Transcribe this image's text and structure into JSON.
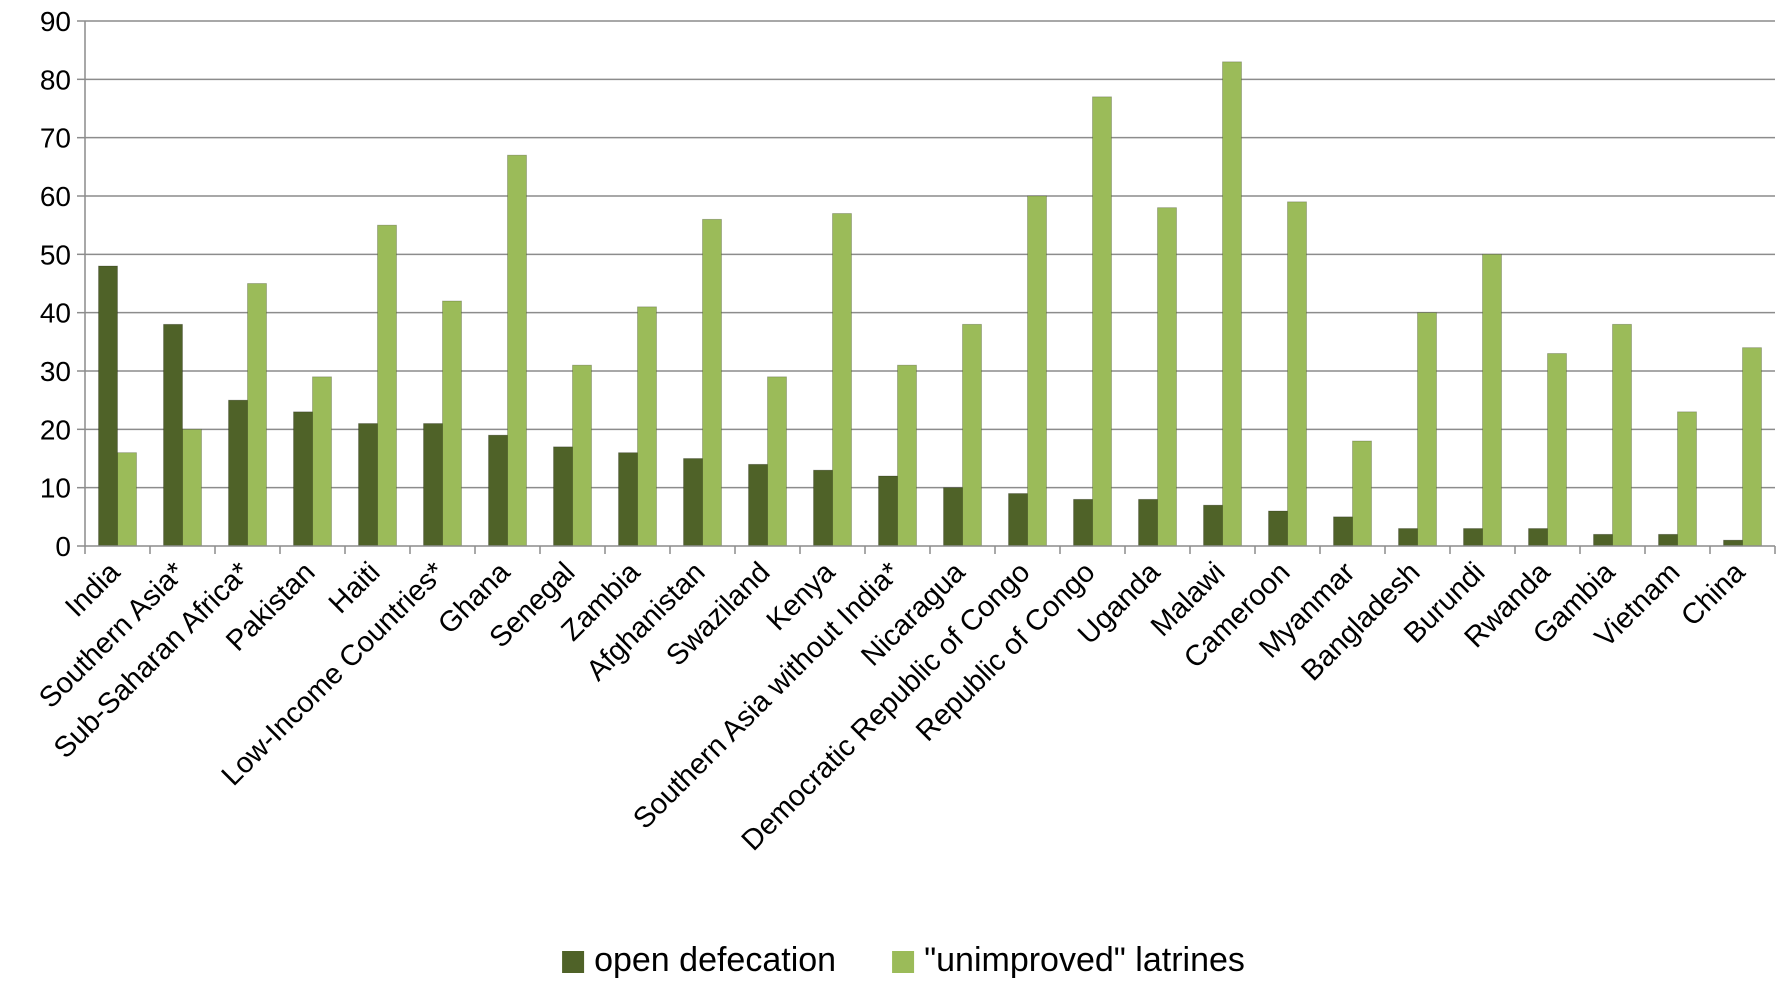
{
  "chart_data": {
    "type": "bar",
    "title": "",
    "xlabel": "",
    "ylabel": "",
    "ylim": [
      0,
      90
    ],
    "y_ticks": [
      0,
      10,
      20,
      30,
      40,
      50,
      60,
      70,
      80,
      90
    ],
    "grid": true,
    "legend_position": "bottom",
    "categories": [
      "India",
      "Southern Asia*",
      "Sub-Saharan Africa*",
      "Pakistan",
      "Haiti",
      "Low-Income Countries*",
      "Ghana",
      "Senegal",
      "Zambia",
      "Afghanistan",
      "Swaziland",
      "Kenya",
      "Southern Asia without India*",
      "Nicaragua",
      "Democratic Republic of Congo",
      "Republic of Congo",
      "Uganda",
      "Malawi",
      "Cameroon",
      "Myanmar",
      "Bangladesh",
      "Burundi",
      "Rwanda",
      "Gambia",
      "Vietnam",
      "China"
    ],
    "series": [
      {
        "name": "open defecation",
        "color": "#4f6228",
        "values": [
          48,
          38,
          25,
          23,
          21,
          21,
          19,
          17,
          16,
          15,
          14,
          13,
          12,
          10,
          9,
          8,
          8,
          7,
          6,
          5,
          3,
          3,
          3,
          2,
          2,
          1
        ]
      },
      {
        "name": "\"unimproved\" latrines",
        "color": "#9bbb59",
        "values": [
          16,
          20,
          45,
          29,
          55,
          42,
          67,
          31,
          41,
          56,
          29,
          57,
          31,
          38,
          60,
          77,
          58,
          83,
          59,
          18,
          40,
          50,
          33,
          38,
          23,
          34
        ]
      }
    ]
  }
}
